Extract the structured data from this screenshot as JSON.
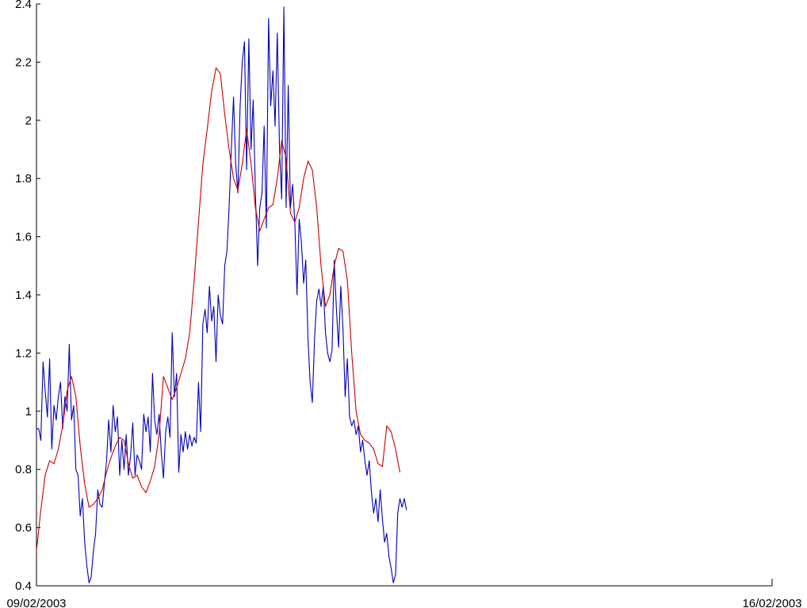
{
  "chart_data": {
    "type": "line",
    "title": "",
    "xlabel": "",
    "ylabel": "",
    "xlim": [
      "09/02/2003",
      "16/02/2003"
    ],
    "x_tick_labels": [
      "09/02/2003",
      "16/02/2003"
    ],
    "ylim": [
      0.4,
      2.4
    ],
    "y_ticks": [
      "0.4",
      "0.6",
      "0.8",
      "1",
      "1.2",
      "1.4",
      "1.6",
      "1.8",
      "2",
      "2.2",
      "2.4"
    ],
    "grid": false,
    "legend": "none",
    "series": [
      {
        "color": "#0000b4",
        "points": [
          [
            "09/02/2003 00:00",
            0.94
          ],
          [
            "09/02/2003 00:30",
            0.94
          ],
          [
            "09/02/2003 01:00",
            0.9
          ],
          [
            "09/02/2003 01:30",
            1.17
          ],
          [
            "09/02/2003 02:00",
            1.07
          ],
          [
            "09/02/2003 02:30",
            0.98
          ],
          [
            "09/02/2003 03:00",
            1.18
          ],
          [
            "09/02/2003 03:30",
            0.87
          ],
          [
            "09/02/2003 04:00",
            1.02
          ],
          [
            "09/02/2003 04:30",
            0.97
          ],
          [
            "09/02/2003 05:00",
            1.05
          ],
          [
            "09/02/2003 05:30",
            1.1
          ],
          [
            "09/02/2003 06:00",
            0.94
          ],
          [
            "09/02/2003 06:30",
            1.05
          ],
          [
            "09/02/2003 07:00",
            1.0
          ],
          [
            "09/02/2003 07:30",
            1.23
          ],
          [
            "09/02/2003 08:00",
            0.97
          ],
          [
            "09/02/2003 08:30",
            1.02
          ],
          [
            "09/02/2003 09:00",
            0.8
          ],
          [
            "09/02/2003 09:30",
            0.78
          ],
          [
            "09/02/2003 10:00",
            0.64
          ],
          [
            "09/02/2003 10:30",
            0.7
          ],
          [
            "09/02/2003 11:00",
            0.55
          ],
          [
            "09/02/2003 11:30",
            0.47
          ],
          [
            "09/02/2003 12:00",
            0.41
          ],
          [
            "09/02/2003 12:30",
            0.43
          ],
          [
            "09/02/2003 13:00",
            0.52
          ],
          [
            "09/02/2003 13:30",
            0.58
          ],
          [
            "09/02/2003 14:00",
            0.73
          ],
          [
            "09/02/2003 14:30",
            0.68
          ],
          [
            "09/02/2003 15:00",
            0.67
          ],
          [
            "09/02/2003 15:30",
            0.75
          ],
          [
            "09/02/2003 16:00",
            0.83
          ],
          [
            "09/02/2003 16:30",
            0.97
          ],
          [
            "09/02/2003 17:00",
            0.86
          ],
          [
            "09/02/2003 17:30",
            1.02
          ],
          [
            "09/02/2003 18:00",
            0.93
          ],
          [
            "09/02/2003 18:30",
            0.98
          ],
          [
            "09/02/2003 19:00",
            0.78
          ],
          [
            "09/02/2003 19:30",
            0.9
          ],
          [
            "09/02/2003 20:00",
            0.8
          ],
          [
            "09/02/2003 20:30",
            0.92
          ],
          [
            "09/02/2003 21:00",
            0.78
          ],
          [
            "09/02/2003 21:30",
            0.85
          ],
          [
            "09/02/2003 22:00",
            0.96
          ],
          [
            "09/02/2003 22:30",
            0.78
          ],
          [
            "09/02/2003 23:00",
            0.85
          ],
          [
            "09/02/2003 23:30",
            0.83
          ],
          [
            "10/02/2003 00:00",
            0.8
          ],
          [
            "10/02/2003 00:30",
            0.99
          ],
          [
            "10/02/2003 01:00",
            0.93
          ],
          [
            "10/02/2003 01:30",
            0.98
          ],
          [
            "10/02/2003 02:00",
            0.86
          ],
          [
            "10/02/2003 02:30",
            1.13
          ],
          [
            "10/02/2003 03:00",
            0.97
          ],
          [
            "10/02/2003 03:30",
            0.92
          ],
          [
            "10/02/2003 04:00",
            0.99
          ],
          [
            "10/02/2003 04:30",
            0.86
          ],
          [
            "10/02/2003 05:00",
            0.77
          ],
          [
            "10/02/2003 05:30",
            0.93
          ],
          [
            "10/02/2003 06:00",
            0.98
          ],
          [
            "10/02/2003 06:30",
            0.91
          ],
          [
            "10/02/2003 07:00",
            1.27
          ],
          [
            "10/02/2003 07:30",
            1.05
          ],
          [
            "10/02/2003 08:00",
            1.13
          ],
          [
            "10/02/2003 08:30",
            0.79
          ],
          [
            "10/02/2003 09:00",
            0.92
          ],
          [
            "10/02/2003 09:30",
            0.86
          ],
          [
            "10/02/2003 10:00",
            0.93
          ],
          [
            "10/02/2003 10:30",
            0.87
          ],
          [
            "10/02/2003 11:00",
            0.92
          ],
          [
            "10/02/2003 11:30",
            0.88
          ],
          [
            "10/02/2003 12:00",
            0.91
          ],
          [
            "10/02/2003 12:30",
            0.89
          ],
          [
            "10/02/2003 13:00",
            1.1
          ],
          [
            "10/02/2003 13:30",
            0.93
          ],
          [
            "10/02/2003 14:00",
            1.3
          ],
          [
            "10/02/2003 14:30",
            1.35
          ],
          [
            "10/02/2003 15:00",
            1.27
          ],
          [
            "10/02/2003 15:30",
            1.43
          ],
          [
            "10/02/2003 16:00",
            1.31
          ],
          [
            "10/02/2003 16:30",
            1.36
          ],
          [
            "10/02/2003 17:00",
            1.17
          ],
          [
            "10/02/2003 17:30",
            1.4
          ],
          [
            "10/02/2003 18:00",
            1.33
          ],
          [
            "10/02/2003 18:30",
            1.3
          ],
          [
            "10/02/2003 19:00",
            1.5
          ],
          [
            "10/02/2003 19:30",
            1.55
          ],
          [
            "10/02/2003 20:00",
            1.7
          ],
          [
            "10/02/2003 20:30",
            1.9
          ],
          [
            "10/02/2003 21:00",
            2.08
          ],
          [
            "10/02/2003 21:30",
            1.85
          ],
          [
            "10/02/2003 22:00",
            1.75
          ],
          [
            "10/02/2003 22:30",
            2.05
          ],
          [
            "10/02/2003 23:00",
            2.2
          ],
          [
            "10/02/2003 23:30",
            2.27
          ],
          [
            "11/02/2003 00:00",
            1.83
          ],
          [
            "11/02/2003 00:30",
            2.28
          ],
          [
            "11/02/2003 01:00",
            1.9
          ],
          [
            "11/02/2003 01:30",
            2.07
          ],
          [
            "11/02/2003 02:00",
            1.75
          ],
          [
            "11/02/2003 02:30",
            1.5
          ],
          [
            "11/02/2003 03:00",
            1.7
          ],
          [
            "11/02/2003 03:30",
            1.75
          ],
          [
            "11/02/2003 04:00",
            1.98
          ],
          [
            "11/02/2003 04:30",
            1.63
          ],
          [
            "11/02/2003 05:00",
            2.35
          ],
          [
            "11/02/2003 05:30",
            2.05
          ],
          [
            "11/02/2003 06:00",
            2.17
          ],
          [
            "11/02/2003 06:30",
            1.98
          ],
          [
            "11/02/2003 07:00",
            2.3
          ],
          [
            "11/02/2003 07:30",
            1.9
          ],
          [
            "11/02/2003 08:00",
            1.73
          ],
          [
            "11/02/2003 08:30",
            2.39
          ],
          [
            "11/02/2003 09:00",
            1.7
          ],
          [
            "11/02/2003 09:30",
            2.12
          ],
          [
            "11/02/2003 10:00",
            1.7
          ],
          [
            "11/02/2003 10:30",
            1.78
          ],
          [
            "11/02/2003 11:00",
            1.65
          ],
          [
            "11/02/2003 11:30",
            1.4
          ],
          [
            "11/02/2003 12:00",
            1.66
          ],
          [
            "11/02/2003 12:30",
            1.58
          ],
          [
            "11/02/2003 13:00",
            1.44
          ],
          [
            "11/02/2003 13:30",
            1.52
          ],
          [
            "11/02/2003 14:00",
            1.25
          ],
          [
            "11/02/2003 14:30",
            1.1
          ],
          [
            "11/02/2003 15:00",
            1.03
          ],
          [
            "11/02/2003 15:30",
            1.25
          ],
          [
            "11/02/2003 16:00",
            1.38
          ],
          [
            "11/02/2003 16:30",
            1.42
          ],
          [
            "11/02/2003 17:00",
            1.36
          ],
          [
            "11/02/2003 17:30",
            1.43
          ],
          [
            "11/02/2003 18:00",
            1.27
          ],
          [
            "11/02/2003 18:30",
            1.2
          ],
          [
            "11/02/2003 19:00",
            1.17
          ],
          [
            "11/02/2003 19:30",
            1.21
          ],
          [
            "11/02/2003 20:00",
            1.52
          ],
          [
            "11/02/2003 20:30",
            1.35
          ],
          [
            "11/02/2003 21:00",
            1.22
          ],
          [
            "11/02/2003 21:30",
            1.43
          ],
          [
            "11/02/2003 22:00",
            1.28
          ],
          [
            "11/02/2003 22:30",
            1.05
          ],
          [
            "11/02/2003 23:00",
            1.18
          ],
          [
            "11/02/2003 23:30",
            0.98
          ],
          [
            "12/02/2003 00:00",
            0.95
          ],
          [
            "12/02/2003 00:30",
            0.97
          ],
          [
            "12/02/2003 01:00",
            0.92
          ],
          [
            "12/02/2003 01:30",
            0.95
          ],
          [
            "12/02/2003 02:00",
            0.86
          ],
          [
            "12/02/2003 02:30",
            0.9
          ],
          [
            "12/02/2003 03:00",
            0.83
          ],
          [
            "12/02/2003 03:30",
            0.78
          ],
          [
            "12/02/2003 04:00",
            0.83
          ],
          [
            "12/02/2003 04:30",
            0.72
          ],
          [
            "12/02/2003 05:00",
            0.65
          ],
          [
            "12/02/2003 05:30",
            0.7
          ],
          [
            "12/02/2003 06:00",
            0.62
          ],
          [
            "12/02/2003 06:30",
            0.73
          ],
          [
            "12/02/2003 07:00",
            0.63
          ],
          [
            "12/02/2003 07:30",
            0.55
          ],
          [
            "12/02/2003 08:00",
            0.58
          ],
          [
            "12/02/2003 08:30",
            0.5
          ],
          [
            "12/02/2003 09:00",
            0.46
          ],
          [
            "12/02/2003 09:30",
            0.41
          ],
          [
            "12/02/2003 10:00",
            0.44
          ],
          [
            "12/02/2003 10:30",
            0.65
          ],
          [
            "12/02/2003 11:00",
            0.7
          ],
          [
            "12/02/2003 11:30",
            0.67
          ],
          [
            "12/02/2003 12:00",
            0.7
          ],
          [
            "12/02/2003 12:30",
            0.66
          ]
        ]
      },
      {
        "color": "#c80000",
        "points": [
          [
            "09/02/2003 00:00",
            0.52
          ],
          [
            "09/02/2003 01:00",
            0.66
          ],
          [
            "09/02/2003 02:00",
            0.78
          ],
          [
            "09/02/2003 03:00",
            0.83
          ],
          [
            "09/02/2003 04:00",
            0.82
          ],
          [
            "09/02/2003 05:00",
            0.87
          ],
          [
            "09/02/2003 06:00",
            0.95
          ],
          [
            "09/02/2003 07:00",
            1.07
          ],
          [
            "09/02/2003 08:00",
            1.12
          ],
          [
            "09/02/2003 09:00",
            1.05
          ],
          [
            "09/02/2003 10:00",
            0.88
          ],
          [
            "09/02/2003 11:00",
            0.75
          ],
          [
            "09/02/2003 12:00",
            0.67
          ],
          [
            "09/02/2003 13:00",
            0.68
          ],
          [
            "09/02/2003 14:00",
            0.7
          ],
          [
            "09/02/2003 15:00",
            0.73
          ],
          [
            "09/02/2003 16:00",
            0.79
          ],
          [
            "09/02/2003 17:00",
            0.84
          ],
          [
            "09/02/2003 18:00",
            0.88
          ],
          [
            "09/02/2003 19:00",
            0.91
          ],
          [
            "09/02/2003 20:00",
            0.9
          ],
          [
            "09/02/2003 21:00",
            0.82
          ],
          [
            "09/02/2003 22:00",
            0.77
          ],
          [
            "09/02/2003 23:00",
            0.78
          ],
          [
            "10/02/2003 00:00",
            0.74
          ],
          [
            "10/02/2003 01:00",
            0.72
          ],
          [
            "10/02/2003 02:00",
            0.76
          ],
          [
            "10/02/2003 03:00",
            0.81
          ],
          [
            "10/02/2003 04:00",
            0.92
          ],
          [
            "10/02/2003 05:00",
            1.12
          ],
          [
            "10/02/2003 06:00",
            1.08
          ],
          [
            "10/02/2003 07:00",
            1.04
          ],
          [
            "10/02/2003 08:00",
            1.08
          ],
          [
            "10/02/2003 09:00",
            1.13
          ],
          [
            "10/02/2003 10:00",
            1.18
          ],
          [
            "10/02/2003 11:00",
            1.27
          ],
          [
            "10/02/2003 12:00",
            1.45
          ],
          [
            "10/02/2003 13:00",
            1.65
          ],
          [
            "10/02/2003 14:00",
            1.85
          ],
          [
            "10/02/2003 15:00",
            1.97
          ],
          [
            "10/02/2003 16:00",
            2.1
          ],
          [
            "10/02/2003 17:00",
            2.18
          ],
          [
            "10/02/2003 18:00",
            2.16
          ],
          [
            "10/02/2003 19:00",
            2.02
          ],
          [
            "10/02/2003 20:00",
            1.9
          ],
          [
            "10/02/2003 21:00",
            1.8
          ],
          [
            "10/02/2003 22:00",
            1.76
          ],
          [
            "10/02/2003 23:00",
            1.85
          ],
          [
            "11/02/2003 00:00",
            1.97
          ],
          [
            "11/02/2003 01:00",
            1.85
          ],
          [
            "11/02/2003 02:00",
            1.7
          ],
          [
            "11/02/2003 03:00",
            1.62
          ],
          [
            "11/02/2003 04:00",
            1.66
          ],
          [
            "11/02/2003 05:00",
            1.7
          ],
          [
            "11/02/2003 06:00",
            1.71
          ],
          [
            "11/02/2003 07:00",
            1.8
          ],
          [
            "11/02/2003 08:00",
            1.93
          ],
          [
            "11/02/2003 09:00",
            1.87
          ],
          [
            "11/02/2003 10:00",
            1.68
          ],
          [
            "11/02/2003 11:00",
            1.65
          ],
          [
            "11/02/2003 12:00",
            1.7
          ],
          [
            "11/02/2003 13:00",
            1.8
          ],
          [
            "11/02/2003 14:00",
            1.86
          ],
          [
            "11/02/2003 15:00",
            1.83
          ],
          [
            "11/02/2003 16:00",
            1.7
          ],
          [
            "11/02/2003 17:00",
            1.5
          ],
          [
            "11/02/2003 18:00",
            1.36
          ],
          [
            "11/02/2003 19:00",
            1.4
          ],
          [
            "11/02/2003 20:00",
            1.5
          ],
          [
            "11/02/2003 21:00",
            1.56
          ],
          [
            "11/02/2003 22:00",
            1.55
          ],
          [
            "11/02/2003 23:00",
            1.45
          ],
          [
            "12/02/2003 00:00",
            1.2
          ],
          [
            "12/02/2003 01:00",
            1.0
          ],
          [
            "12/02/2003 02:00",
            0.92
          ],
          [
            "12/02/2003 03:00",
            0.9
          ],
          [
            "12/02/2003 04:00",
            0.89
          ],
          [
            "12/02/2003 05:00",
            0.87
          ],
          [
            "12/02/2003 06:00",
            0.82
          ],
          [
            "12/02/2003 07:00",
            0.81
          ],
          [
            "12/02/2003 08:00",
            0.95
          ],
          [
            "12/02/2003 09:00",
            0.93
          ],
          [
            "12/02/2003 10:00",
            0.87
          ],
          [
            "12/02/2003 11:00",
            0.79
          ]
        ]
      }
    ]
  }
}
